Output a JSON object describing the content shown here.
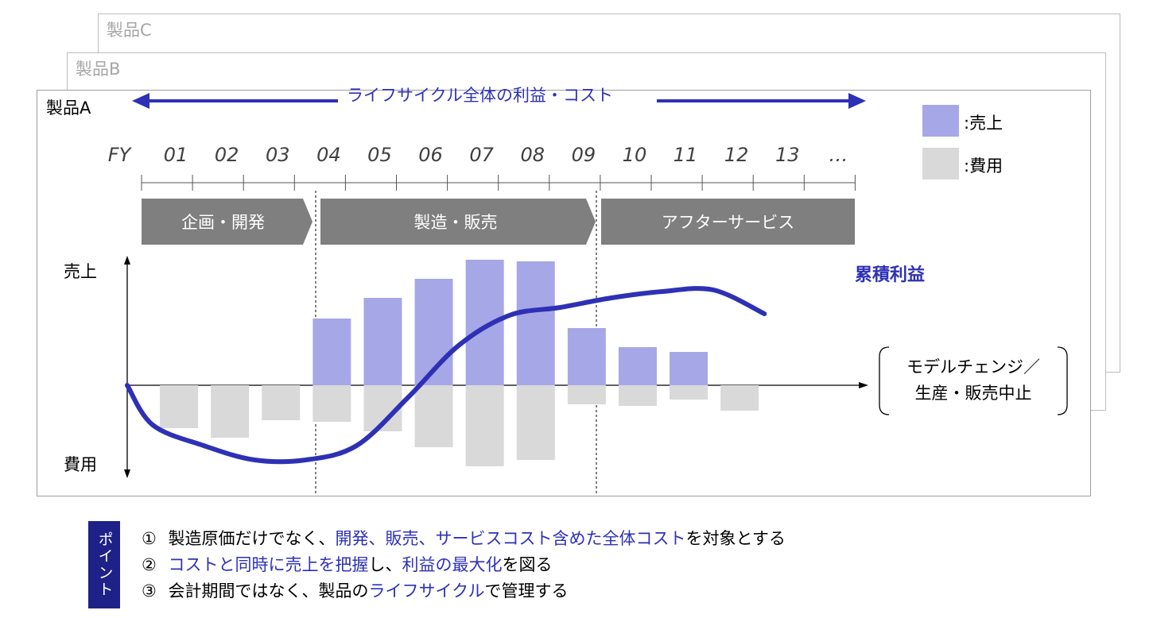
{
  "cards": {
    "back": "製品C",
    "middle": "製品B",
    "front": "製品A"
  },
  "lifecycle_label": "ライフサイクル全体の利益・コスト",
  "legend": {
    "sales": ":売上",
    "cost": ":費用",
    "sales_color": "#a6a7e6",
    "cost_color": "#d9d9d9"
  },
  "fiscal_years": [
    "FY",
    "01",
    "02",
    "03",
    "04",
    "05",
    "06",
    "07",
    "08",
    "09",
    "10",
    "11",
    "12",
    "13",
    "…"
  ],
  "phases": [
    "企画・開発",
    "製造・販売",
    "アフターサービス"
  ],
  "y_axis": {
    "top": "売上",
    "bottom": "費用"
  },
  "cumulative_label": "累積利益",
  "line_color": "#2e31b5",
  "end_note": {
    "line1": "モデルチェンジ／",
    "line2": "生産・販売中止"
  },
  "points": {
    "tag": "ポイント",
    "p1": {
      "num": "①",
      "a": "製造原価だけでなく、",
      "b": "開発、販売、サービスコスト含めた全体コスト",
      "c": "を対象とする"
    },
    "p2": {
      "num": "②",
      "a": "",
      "b": "コストと同時に売上を把握",
      "c": "し、",
      "d": "利益の最大化",
      "e": "を図る"
    },
    "p3": {
      "num": "③",
      "a": "会計期間ではなく、製品の",
      "b": "ライフサイクル",
      "c": "で管理する"
    }
  },
  "chart_data": {
    "type": "bar",
    "categories": [
      "01",
      "02",
      "03",
      "04",
      "05",
      "06",
      "07",
      "08",
      "09",
      "10",
      "11",
      "12",
      "13"
    ],
    "series": [
      {
        "name": "売上",
        "values": [
          0,
          0,
          0,
          0.42,
          0.55,
          0.67,
          0.79,
          0.78,
          0.36,
          0.24,
          0.21,
          0,
          0
        ]
      },
      {
        "name": "費用",
        "values": [
          -0.27,
          -0.33,
          -0.22,
          -0.23,
          -0.29,
          -0.39,
          -0.51,
          -0.47,
          -0.12,
          -0.13,
          -0.09,
          -0.16,
          0
        ]
      },
      {
        "name": "累積利益",
        "type": "line",
        "x": [
          0.0,
          0.5,
          1.5,
          2.5,
          3.5,
          4.5,
          5.5,
          6.5,
          7.5,
          8.5,
          9.5,
          10.5,
          11.5,
          12.5
        ],
        "values": [
          0.0,
          -0.25,
          -0.38,
          -0.47,
          -0.47,
          -0.38,
          -0.08,
          0.25,
          0.44,
          0.49,
          0.55,
          0.59,
          0.6,
          0.45
        ]
      }
    ],
    "unit_note": "relative scale, unlabeled axes"
  }
}
